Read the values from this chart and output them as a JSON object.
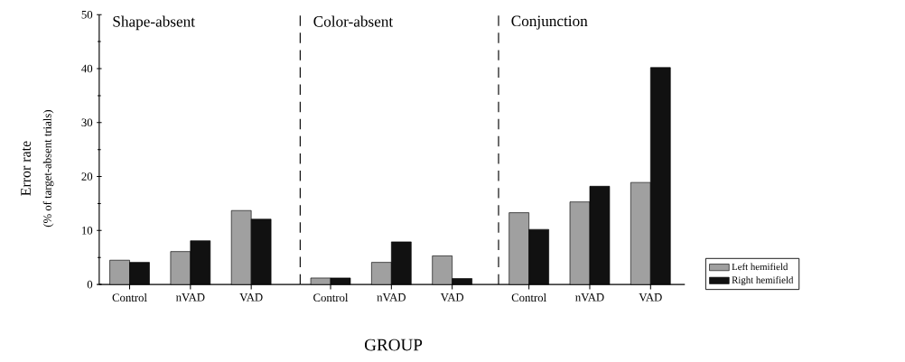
{
  "chart_data": [
    {
      "type": "bar",
      "title": "Shape-absent",
      "ylabel": "Error rate",
      "annotations": [
        "(% of target-absent trials)"
      ],
      "categories": [
        "Control",
        "nVAD",
        "VAD"
      ],
      "ylim": [
        0,
        50
      ],
      "yticks": [
        0,
        10,
        20,
        30,
        40,
        50
      ],
      "tick_labels": "xy",
      "series": [
        {
          "color": "#a0a0a0",
          "values": [
            4.5,
            6.1,
            13.7
          ]
        },
        {
          "color": "#111111",
          "values": [
            4.1,
            8.1,
            12.1
          ]
        }
      ]
    },
    {
      "type": "bar",
      "title": "Color-absent",
      "xlabel": "GROUP",
      "categories": [
        "Control",
        "nVAD",
        "VAD"
      ],
      "ylim": [
        0,
        50
      ],
      "tick_labels": "x",
      "series": [
        {
          "color": "#a0a0a0",
          "values": [
            1.2,
            4.1,
            5.3
          ]
        },
        {
          "color": "#111111",
          "values": [
            1.2,
            7.9,
            1.1
          ]
        }
      ]
    },
    {
      "type": "bar",
      "title": "Conjunction",
      "categories": [
        "Control",
        "nVAD",
        "VAD"
      ],
      "ylim": [
        0,
        50
      ],
      "tick_labels": "x",
      "legend": "right",
      "series": [
        {
          "name": "Left hemifield",
          "color": "#a0a0a0",
          "values": [
            13.3,
            15.3,
            18.9
          ]
        },
        {
          "name": "Right hemifield",
          "color": "#111111",
          "values": [
            10.2,
            18.2,
            40.2
          ]
        }
      ]
    }
  ]
}
